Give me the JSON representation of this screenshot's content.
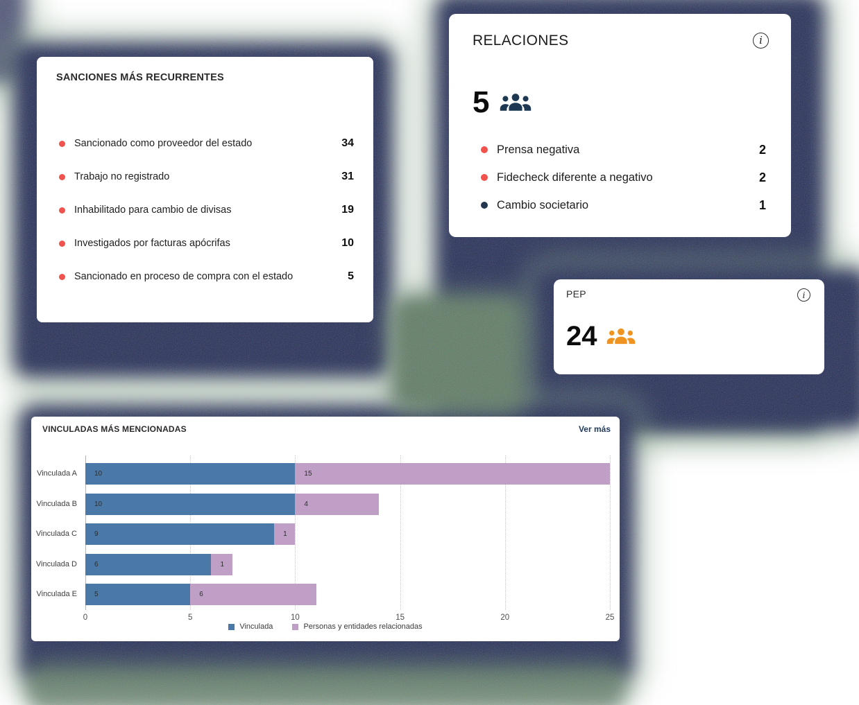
{
  "cards": {
    "sanciones": {
      "title": "SANCIONES MÁS RECURRENTES",
      "items": [
        {
          "label": "Sancionado como proveedor del estado",
          "value": "34",
          "bullet_color": "#F0524D"
        },
        {
          "label": "Trabajo no registrado",
          "value": "31",
          "bullet_color": "#F0524D"
        },
        {
          "label": "Inhabilitado para cambio de divisas",
          "value": "19",
          "bullet_color": "#F0524D"
        },
        {
          "label": "Investigados por facturas apócrifas",
          "value": "10",
          "bullet_color": "#F0524D"
        },
        {
          "label": "Sancionado en proceso de compra con el estado",
          "value": "5",
          "bullet_color": "#F0524D"
        }
      ]
    },
    "relaciones": {
      "title": "RELACIONES",
      "total": "5",
      "icon_color": "#1D3850",
      "info_symbol": "i",
      "items": [
        {
          "label": "Prensa negativa",
          "value": "2",
          "bullet_color": "#F0524D"
        },
        {
          "label": "Fidecheck diferente a negativo",
          "value": "2",
          "bullet_color": "#F0524D"
        },
        {
          "label": "Cambio societario",
          "value": "1",
          "bullet_color": "#24364F"
        }
      ]
    },
    "pep": {
      "title": "PEP",
      "total": "24",
      "icon_color": "#F09421",
      "info_symbol": "i"
    },
    "vinculadas": {
      "title": "VINCULADAS MÁS MENCIONADAS",
      "link_label": "Ver más"
    }
  },
  "chart_data": {
    "type": "bar",
    "orientation": "horizontal",
    "stacked": true,
    "title": "VINCULADAS MÁS MENCIONADAS",
    "categories": [
      "Vinculada A",
      "Vinculada B",
      "Vinculada C",
      "Vinculada D",
      "Vinculada E"
    ],
    "series": [
      {
        "name": "Vinculada",
        "color": "#4A79A7",
        "values": [
          10,
          10,
          9,
          6,
          5
        ]
      },
      {
        "name": "Personas y entidades relacionadas",
        "color": "#C09FC7",
        "values": [
          15,
          4,
          1,
          1,
          6
        ]
      }
    ],
    "x_ticks": [
      0,
      5,
      10,
      15,
      20,
      25
    ],
    "xlim": [
      0,
      25
    ],
    "grid": "vertical-dotted",
    "legend_position": "bottom"
  },
  "colors": {
    "shadow_navy": "#242D56",
    "shadow_green": "#5E7B64",
    "accent_red": "#F0524D",
    "link_navy": "#1F3A5F"
  }
}
